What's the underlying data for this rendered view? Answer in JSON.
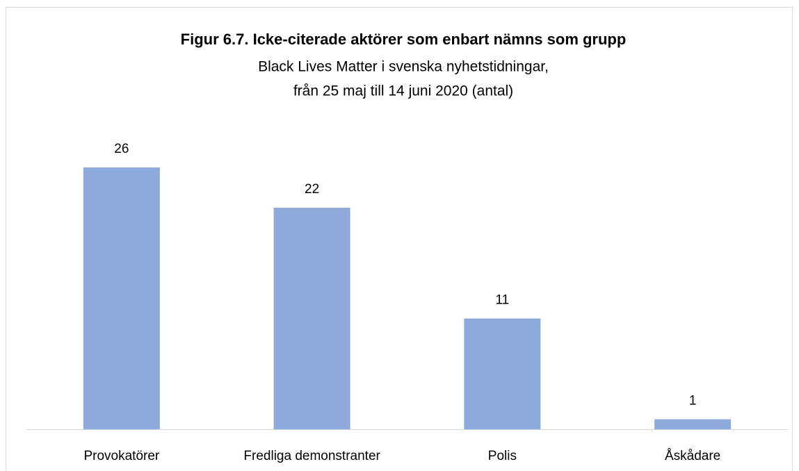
{
  "chart_data": {
    "type": "bar",
    "title": "Figur 6.7. Icke-citerade aktörer som enbart nämns som grupp",
    "subtitle": [
      "Black Lives Matter i svenska nyhetstidningar,",
      "från 25 maj till 14 juni 2020 (antal)"
    ],
    "categories": [
      "Provokatörer",
      "Fredliga demonstranter",
      "Polis",
      "Åskådare"
    ],
    "values": [
      26,
      22,
      11,
      1
    ],
    "color": "#8eaadb"
  }
}
